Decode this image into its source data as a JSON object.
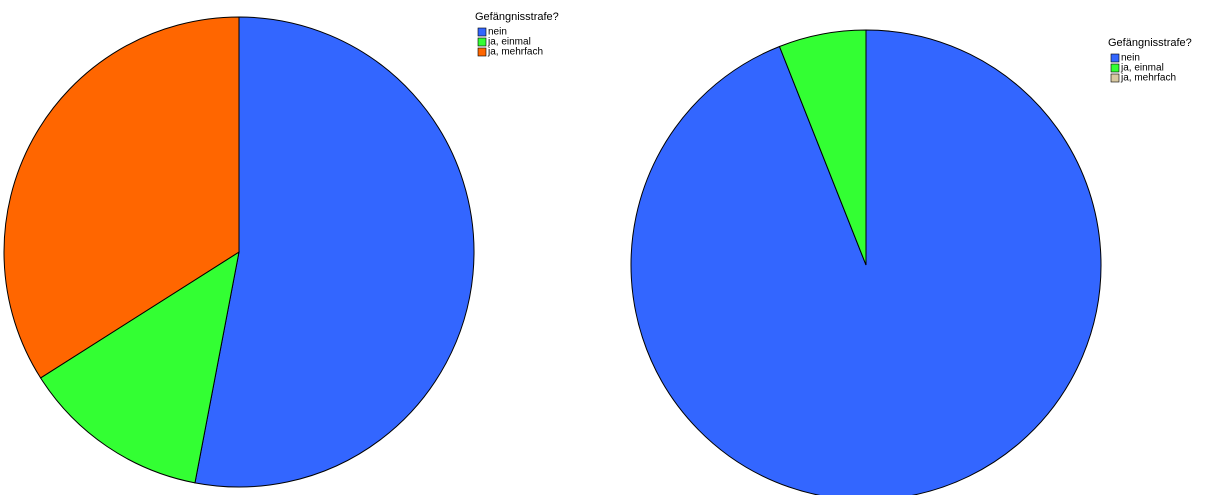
{
  "chart_data": [
    {
      "type": "pie",
      "legend_title": "Gefängnisstrafe?",
      "categories": [
        "nein",
        "ja, einmal",
        "ja, mehrfach"
      ],
      "values": [
        53,
        13,
        34
      ],
      "colors": [
        "#3366ff",
        "#33ff33",
        "#ff6600"
      ]
    },
    {
      "type": "pie",
      "legend_title": "Gefängnisstrafe?",
      "categories": [
        "nein",
        "ja, einmal",
        "ja, mehrfach"
      ],
      "values": [
        94,
        6,
        0
      ],
      "colors": [
        "#3366ff",
        "#33ff33",
        "#d8c8a0"
      ]
    }
  ]
}
